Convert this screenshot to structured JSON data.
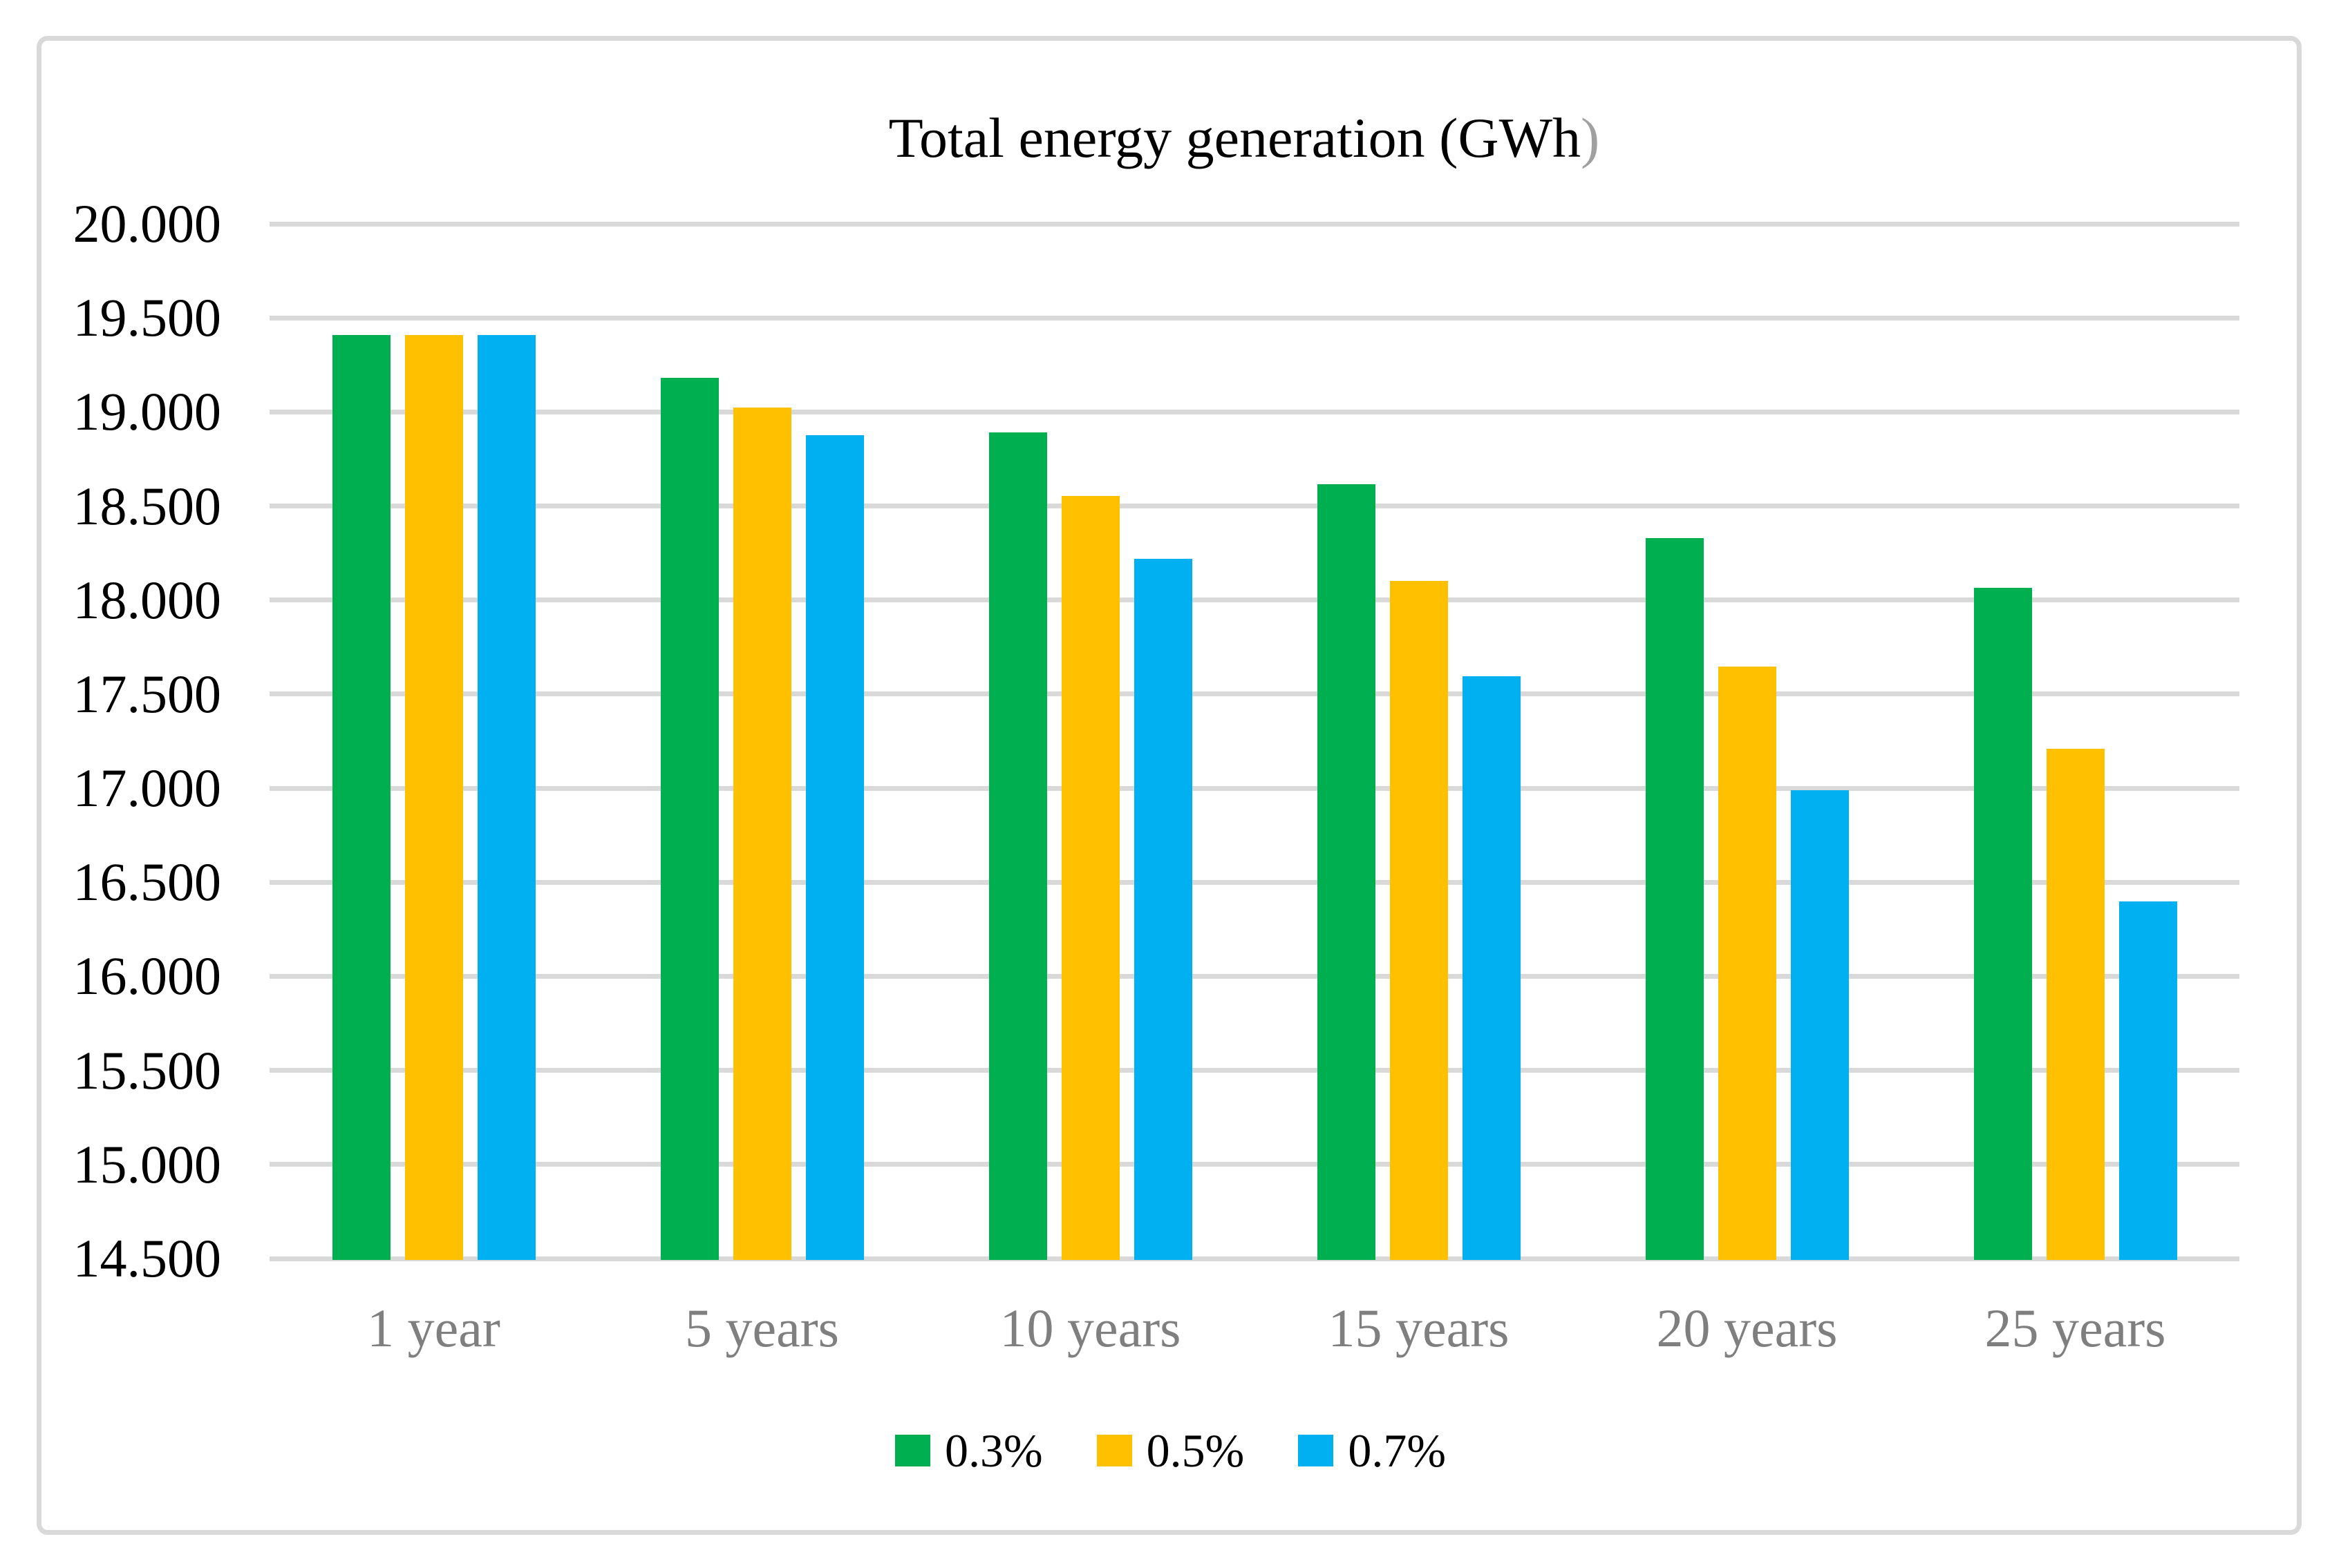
{
  "title": {
    "main": "Total energy generation (GWh",
    "suffix": ")"
  },
  "chart_data": {
    "type": "bar",
    "title": "Total energy generation (GWh)",
    "value_unit": "GWh",
    "categories": [
      "1 year",
      "5 years",
      "10 years",
      "15 years",
      "20 years",
      "25 years"
    ],
    "series": [
      {
        "name": "0.3%",
        "color": "#00B050",
        "values": [
          19410,
          19180,
          18890,
          18615,
          18330,
          18065
        ]
      },
      {
        "name": "0.5%",
        "color": "#FFC000",
        "values": [
          19410,
          19025,
          18555,
          18100,
          17645,
          17210
        ]
      },
      {
        "name": "0.7%",
        "color": "#00B0F0",
        "values": [
          19410,
          18875,
          18220,
          17595,
          16990,
          16400
        ]
      }
    ],
    "ylim": [
      14500,
      20000
    ],
    "ytick_step": 500,
    "ytick_labels": [
      "20.000",
      "19.500",
      "19.000",
      "18.500",
      "18.000",
      "17.500",
      "17.000",
      "16.500",
      "16.000",
      "15.500",
      "15.000",
      "14.500"
    ],
    "xlabel": "",
    "ylabel": "",
    "grid": true,
    "legend_position": "bottom"
  },
  "colors": {
    "background": "#FFFFFF",
    "frame_border": "#D9D9D9",
    "gridline": "#D9D9D9",
    "x_label": "#7F7F7F",
    "y_label": "#000000",
    "title_text": "#000000",
    "title_suffix": "#A0A0A0"
  }
}
